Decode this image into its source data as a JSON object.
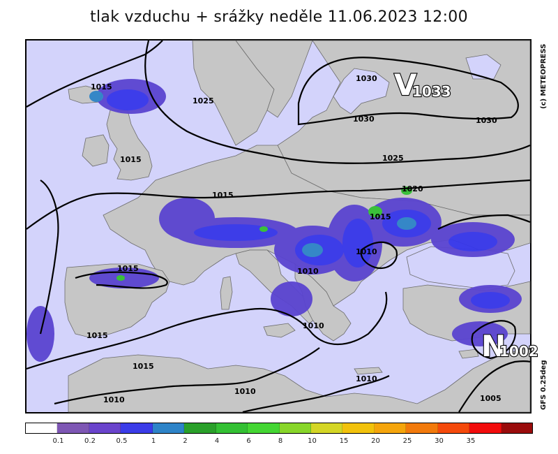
{
  "title": "tlak vzduchu + srážky  neděle 11.06.2023 12:00",
  "credit": "(c) METEOPRESS",
  "model": "GFS 0.25deg",
  "pressure_centers": {
    "high": {
      "letter": "V",
      "value": "1033"
    },
    "low": {
      "letter": "N",
      "value": "1002"
    }
  },
  "isobar_labels": [
    "1015",
    "1025",
    "1030",
    "1030",
    "1030",
    "1015",
    "1025",
    "1015",
    "1020",
    "1015",
    "1010",
    "1015",
    "1010",
    "1010",
    "1015",
    "1015",
    "1010",
    "1010",
    "1010",
    "1005"
  ],
  "colorbar": {
    "colors": [
      "#ffffff",
      "#7e57b4",
      "#6a44cc",
      "#3b3ce8",
      "#2e84c8",
      "#2aa02a",
      "#33c033",
      "#44d633",
      "#88d62a",
      "#d4d626",
      "#f2c20c",
      "#f5a50c",
      "#f27a0c",
      "#f54a0c",
      "#f20c0c",
      "#9a0c0c"
    ],
    "labels": [
      "0.1",
      "0.2",
      "0.5",
      "1",
      "2",
      "4",
      "6",
      "8",
      "10",
      "15",
      "20",
      "25",
      "30",
      "35"
    ]
  }
}
